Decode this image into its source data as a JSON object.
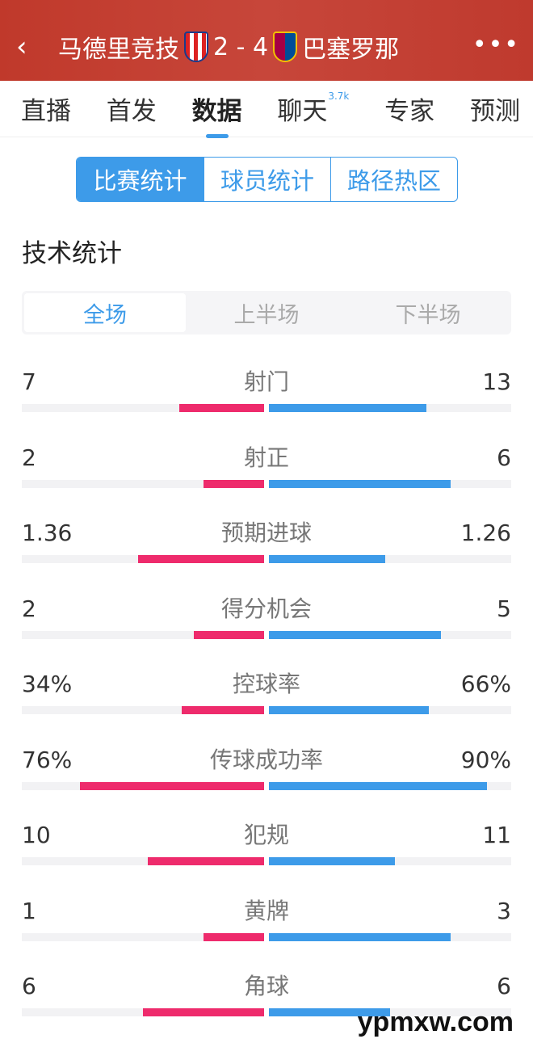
{
  "header": {
    "home": "马德里竞技",
    "score": "2 - 4",
    "away": "巴塞罗那"
  },
  "tabs": [
    {
      "label": "直播"
    },
    {
      "label": "首发"
    },
    {
      "label": "数据",
      "active": true
    },
    {
      "label": "聊天",
      "badge": "3.7k"
    },
    {
      "label": "专家"
    },
    {
      "label": "预测"
    }
  ],
  "segments": [
    "比赛统计",
    "球员统计",
    "路径热区"
  ],
  "section_title": "技术统计",
  "periods": [
    "全场",
    "上半场",
    "下半场"
  ],
  "colors": {
    "home": "#ee2b6c",
    "away": "#3d9be9",
    "header": "#c0392b"
  },
  "stats": [
    {
      "name": "射门",
      "home": "7",
      "away": "13",
      "home_frac": 0.35,
      "away_frac": 0.65
    },
    {
      "name": "射正",
      "home": "2",
      "away": "6",
      "home_frac": 0.25,
      "away_frac": 0.75
    },
    {
      "name": "预期进球",
      "home": "1.36",
      "away": "1.26",
      "home_frac": 0.52,
      "away_frac": 0.48
    },
    {
      "name": "得分机会",
      "home": "2",
      "away": "5",
      "home_frac": 0.29,
      "away_frac": 0.71
    },
    {
      "name": "控球率",
      "home": "34%",
      "away": "66%",
      "home_frac": 0.34,
      "away_frac": 0.66
    },
    {
      "name": "传球成功率",
      "home": "76%",
      "away": "90%",
      "home_frac": 0.76,
      "away_frac": 0.9
    },
    {
      "name": "犯规",
      "home": "10",
      "away": "11",
      "home_frac": 0.48,
      "away_frac": 0.52
    },
    {
      "name": "黄牌",
      "home": "1",
      "away": "3",
      "home_frac": 0.25,
      "away_frac": 0.75
    },
    {
      "name": "角球",
      "home": "6",
      "away": "6",
      "home_frac": 0.5,
      "away_frac": 0.5
    }
  ],
  "watermark": "ypmxw.com"
}
